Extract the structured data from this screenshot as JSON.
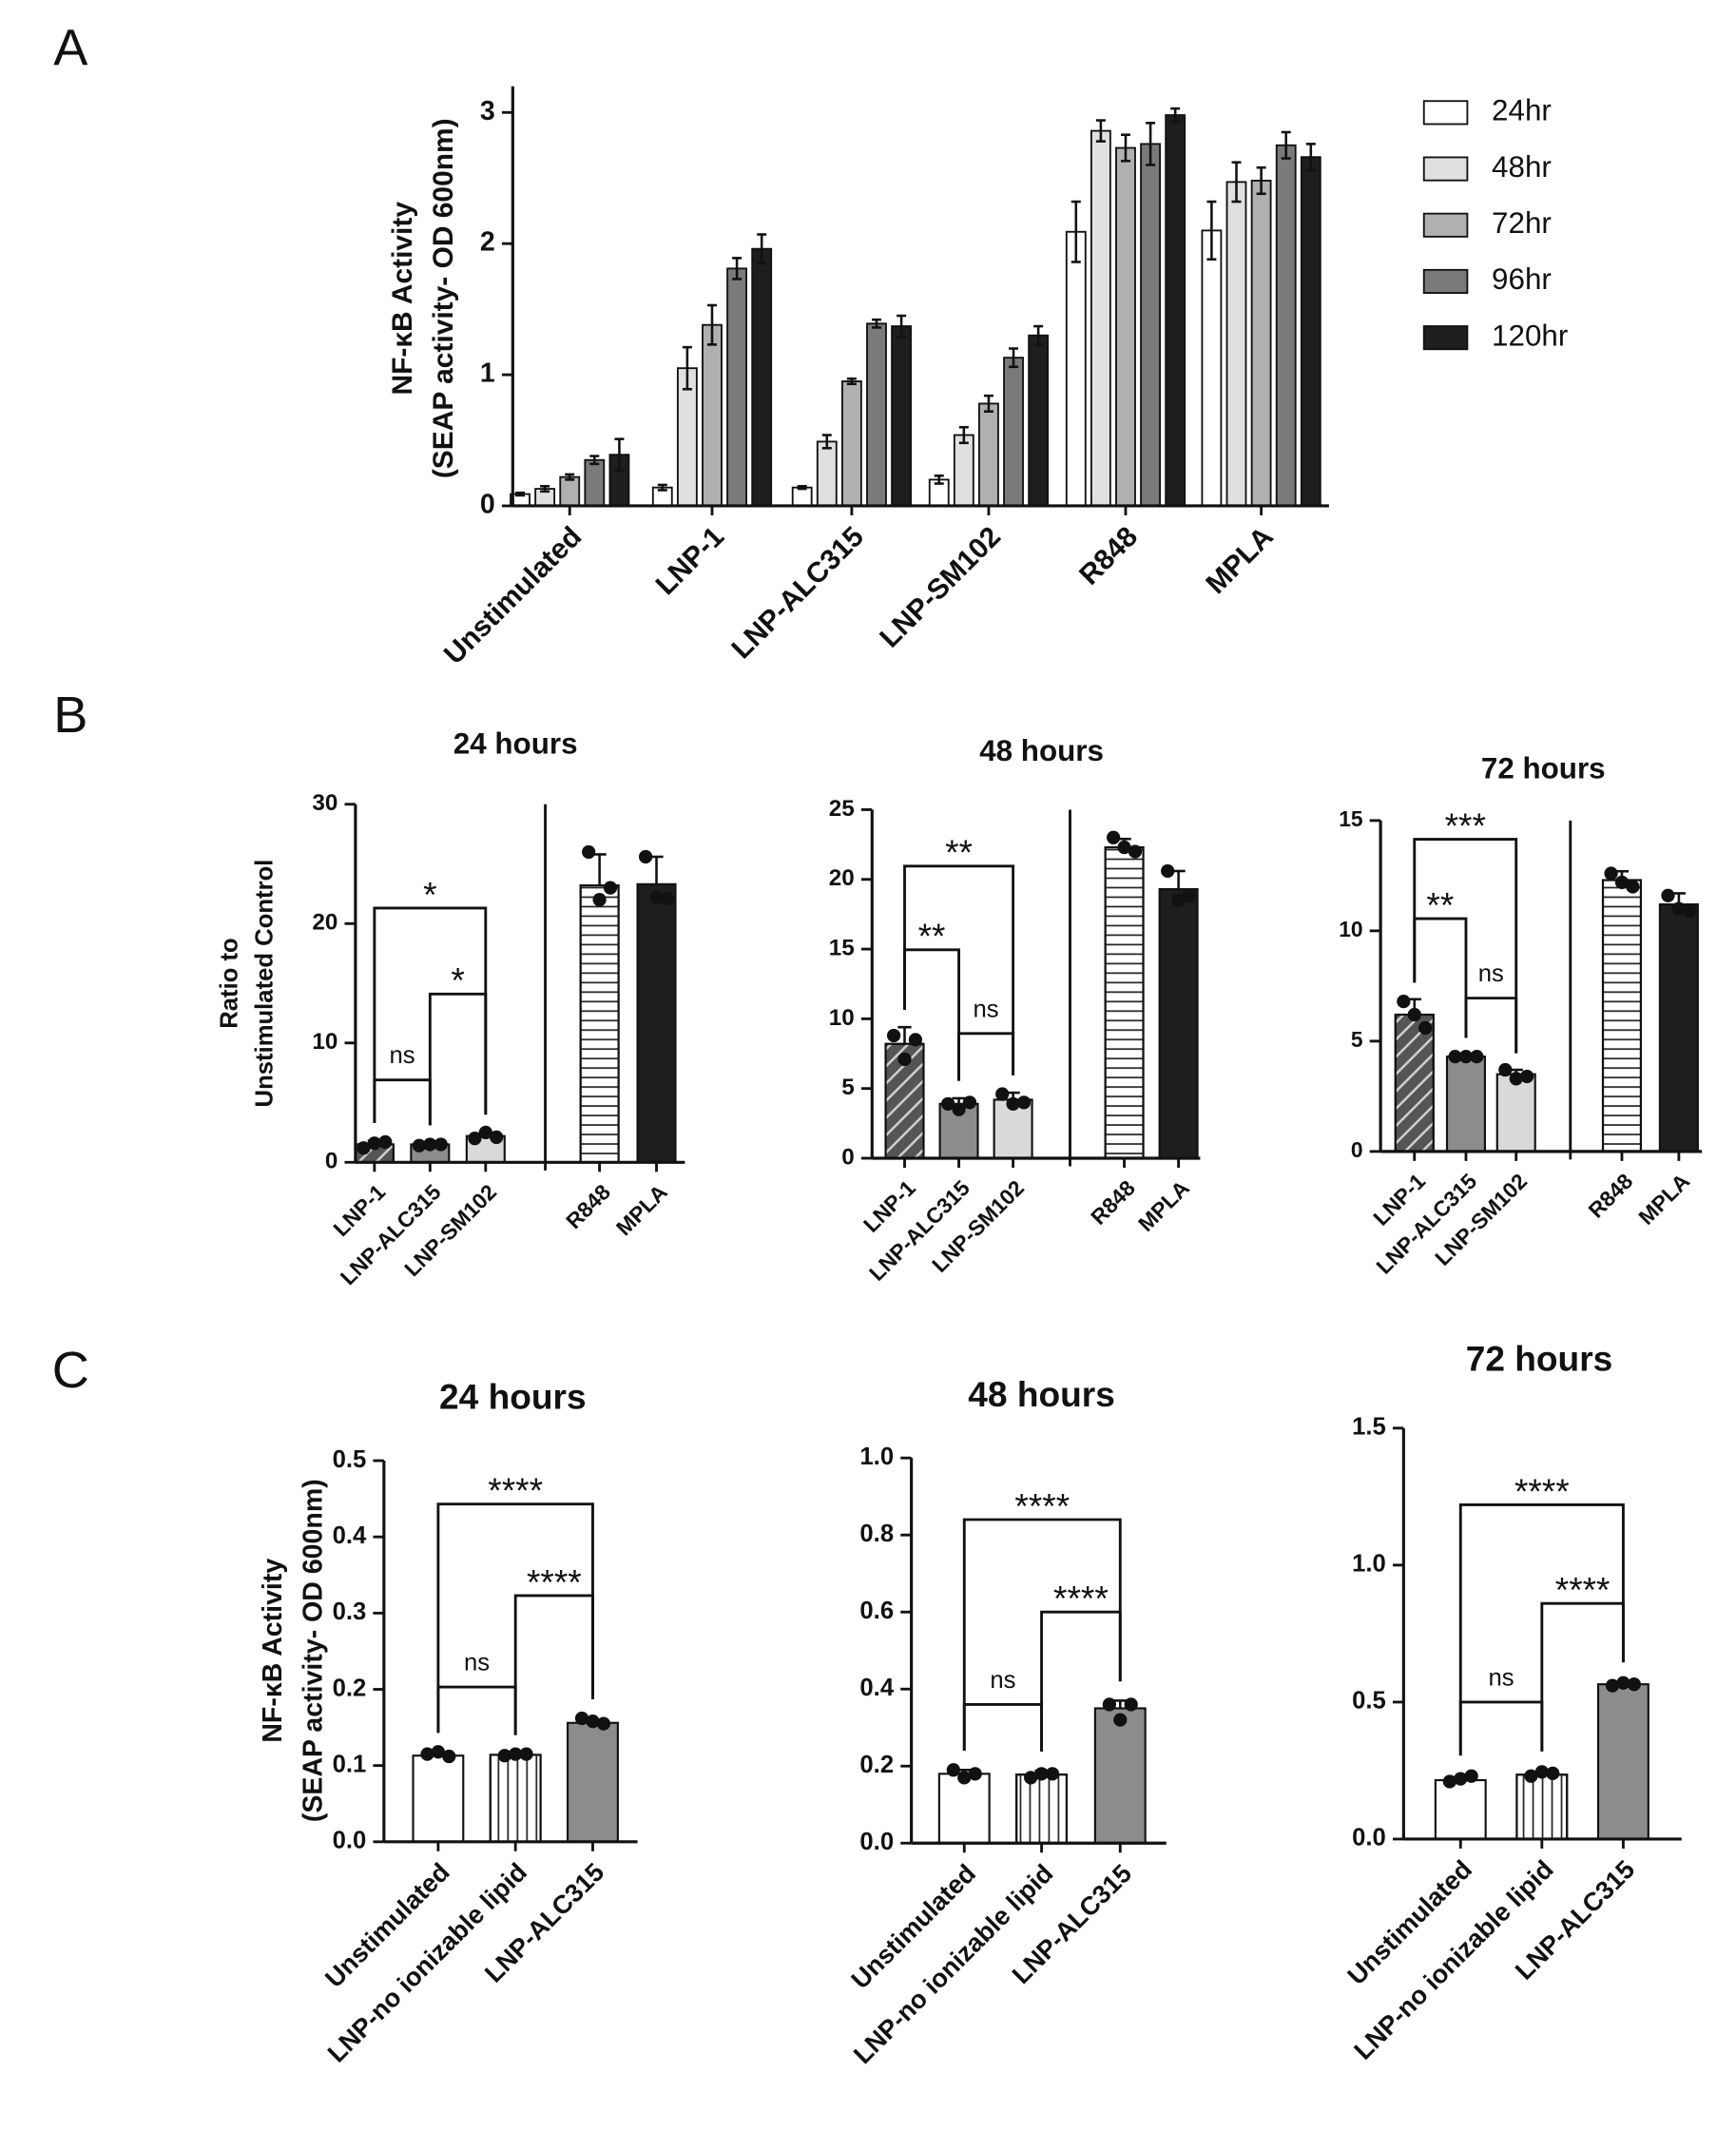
{
  "chart_data": [
    {
      "type": "grouped_bar",
      "panel_label": "A",
      "ylabel": [
        "NF-κB Activity",
        "(SEAP activity- OD 600nm)"
      ],
      "categories": [
        "Unstimulated",
        "LNP-1",
        "LNP-ALC315",
        "LNP-SM102",
        "R848",
        "MPLA"
      ],
      "series": [
        {
          "name": "24hr",
          "color": "#ffffff",
          "values": [
            0.09,
            0.14,
            0.14,
            0.2,
            2.09,
            2.1
          ],
          "errors": [
            0.01,
            0.02,
            0.01,
            0.03,
            0.23,
            0.22
          ]
        },
        {
          "name": "48hr",
          "color": "#e0e0e0",
          "values": [
            0.13,
            1.05,
            0.49,
            0.54,
            2.86,
            2.47
          ],
          "errors": [
            0.02,
            0.16,
            0.05,
            0.06,
            0.08,
            0.15
          ]
        },
        {
          "name": "72hr",
          "color": "#b0b0b0",
          "values": [
            0.22,
            1.38,
            0.95,
            0.78,
            2.73,
            2.48
          ],
          "errors": [
            0.02,
            0.15,
            0.02,
            0.06,
            0.1,
            0.1
          ]
        },
        {
          "name": "96hr",
          "color": "#7a7a7a",
          "values": [
            0.35,
            1.81,
            1.39,
            1.13,
            2.76,
            2.75
          ],
          "errors": [
            0.03,
            0.08,
            0.03,
            0.07,
            0.16,
            0.1
          ]
        },
        {
          "name": "120hr",
          "color": "#1e1e1e",
          "values": [
            0.39,
            1.96,
            1.37,
            1.3,
            2.98,
            2.66
          ],
          "errors": [
            0.12,
            0.11,
            0.08,
            0.07,
            0.05,
            0.1
          ]
        }
      ],
      "ylim": [
        0,
        3.2
      ],
      "yticks": [
        0,
        1,
        2,
        3
      ]
    },
    {
      "type": "bar_dots",
      "panel_label": "B",
      "title": "24 hours",
      "ylabel": [
        "Ratio to",
        "Unstimulated  Control"
      ],
      "categories": [
        "LNP-1",
        "LNP-ALC315",
        "LNP-SM102",
        "R848",
        "MPLA"
      ],
      "colors": [
        "#555555",
        "#8c8c8c",
        "#d9d9d9",
        "#ffffff",
        "#1e1e1e"
      ],
      "hatches": [
        "diagonal",
        "none",
        "none",
        "horizontal",
        "none"
      ],
      "values": [
        1.5,
        1.5,
        2.2,
        23.2,
        23.3
      ],
      "errors": [
        0.3,
        0.1,
        0.3,
        2.6,
        2.3
      ],
      "points": [
        [
          1.2,
          1.6,
          1.7
        ],
        [
          1.4,
          1.5,
          1.5
        ],
        [
          2.0,
          2.5,
          2.1
        ],
        [
          26.0,
          22.0,
          23.0
        ],
        [
          25.6,
          22.2,
          22.1
        ]
      ],
      "ylim": [
        0,
        30
      ],
      "yticks": [
        0,
        10,
        20,
        30
      ],
      "divider_after": "LNP-SM102",
      "comparisons": [
        {
          "between": [
            "LNP-1",
            "LNP-ALC315"
          ],
          "label": "ns"
        },
        {
          "between": [
            "LNP-ALC315",
            "LNP-SM102"
          ],
          "label": "*"
        },
        {
          "between": [
            "LNP-1",
            "LNP-SM102"
          ],
          "label": "*"
        }
      ]
    },
    {
      "type": "bar_dots",
      "title": "48 hours",
      "categories": [
        "LNP-1",
        "LNP-ALC315",
        "LNP-SM102",
        "R848",
        "MPLA"
      ],
      "colors": [
        "#555555",
        "#8c8c8c",
        "#d9d9d9",
        "#ffffff",
        "#1e1e1e"
      ],
      "hatches": [
        "diagonal",
        "none",
        "none",
        "horizontal",
        "none"
      ],
      "values": [
        8.2,
        3.9,
        4.2,
        22.3,
        19.3
      ],
      "errors": [
        1.2,
        0.4,
        0.5,
        0.6,
        1.3
      ],
      "points": [
        [
          8.8,
          7.1,
          8.5
        ],
        [
          3.9,
          3.5,
          4.0
        ],
        [
          4.6,
          3.9,
          4.0
        ],
        [
          23.0,
          22.3,
          22.0
        ],
        [
          20.6,
          18.5,
          18.8
        ]
      ],
      "ylim": [
        0,
        25
      ],
      "yticks": [
        0,
        5,
        10,
        15,
        20,
        25
      ],
      "divider_after": "LNP-SM102",
      "comparisons": [
        {
          "between": [
            "LNP-ALC315",
            "LNP-SM102"
          ],
          "label": "ns"
        },
        {
          "between": [
            "LNP-1",
            "LNP-ALC315"
          ],
          "label": "**"
        },
        {
          "between": [
            "LNP-1",
            "LNP-SM102"
          ],
          "label": "**"
        }
      ]
    },
    {
      "type": "bar_dots",
      "title": "72 hours",
      "categories": [
        "LNP-1",
        "LNP-ALC315",
        "LNP-SM102",
        "R848",
        "MPLA"
      ],
      "colors": [
        "#555555",
        "#8c8c8c",
        "#d9d9d9",
        "#ffffff",
        "#1e1e1e"
      ],
      "hatches": [
        "diagonal",
        "none",
        "none",
        "horizontal",
        "none"
      ],
      "values": [
        6.2,
        4.3,
        3.5,
        12.3,
        11.2
      ],
      "errors": [
        0.7,
        0.1,
        0.2,
        0.4,
        0.5
      ],
      "points": [
        [
          6.8,
          6.2,
          5.6
        ],
        [
          4.3,
          4.3,
          4.3
        ],
        [
          3.7,
          3.3,
          3.4
        ],
        [
          12.6,
          12.2,
          12.0
        ],
        [
          11.6,
          11.0,
          10.9
        ]
      ],
      "ylim": [
        0,
        15
      ],
      "yticks": [
        0,
        5,
        10,
        15
      ],
      "divider_after": "LNP-SM102",
      "comparisons": [
        {
          "between": [
            "LNP-ALC315",
            "LNP-SM102"
          ],
          "label": "ns"
        },
        {
          "between": [
            "LNP-1",
            "LNP-ALC315"
          ],
          "label": "**"
        },
        {
          "between": [
            "LNP-1",
            "LNP-SM102"
          ],
          "label": "***"
        }
      ]
    },
    {
      "type": "bar_dots",
      "panel_label": "C",
      "title": "24 hours",
      "ylabel": [
        "NF-κB Activity",
        "(SEAP activity- OD 600nm)"
      ],
      "categories": [
        "Unstimulated",
        "LNP-no ionizable lipid",
        "LNP-ALC315"
      ],
      "colors": [
        "#ffffff",
        "#ffffff",
        "#8c8c8c"
      ],
      "hatches": [
        "none",
        "vertical",
        "none"
      ],
      "values": [
        0.113,
        0.114,
        0.156
      ],
      "errors": [
        0.003,
        0.001,
        0.004
      ],
      "points": [
        [
          0.115,
          0.118,
          0.112
        ],
        [
          0.113,
          0.115,
          0.115
        ],
        [
          0.162,
          0.158,
          0.155
        ]
      ],
      "ylim": [
        0,
        0.5
      ],
      "yticks": [
        {
          "value": 0,
          "label": "0.0"
        },
        0.1,
        0.2,
        0.3,
        0.4,
        0.5
      ],
      "comparisons": [
        {
          "between": [
            "Unstimulated",
            "LNP-no ionizable lipid"
          ],
          "label": "ns"
        },
        {
          "between": [
            "LNP-no ionizable lipid",
            "LNP-ALC315"
          ],
          "label": "****"
        },
        {
          "between": [
            "Unstimulated",
            "LNP-ALC315"
          ],
          "label": "****"
        }
      ]
    },
    {
      "type": "bar_dots",
      "title": "48 hours",
      "categories": [
        "Unstimulated",
        "LNP-no ionizable lipid",
        "LNP-ALC315"
      ],
      "colors": [
        "#ffffff",
        "#ffffff",
        "#8c8c8c"
      ],
      "hatches": [
        "none",
        "vertical",
        "none"
      ],
      "values": [
        0.18,
        0.178,
        0.35
      ],
      "errors": [
        0.01,
        0.01,
        0.02
      ],
      "points": [
        [
          0.19,
          0.17,
          0.18
        ],
        [
          0.17,
          0.18,
          0.18
        ],
        [
          0.36,
          0.32,
          0.36
        ]
      ],
      "ylim": [
        0,
        1.0
      ],
      "yticks": [
        {
          "value": 0,
          "label": "0.0"
        },
        0.2,
        0.4,
        0.6,
        0.8,
        {
          "value": 1,
          "label": "1.0"
        }
      ],
      "comparisons": [
        {
          "between": [
            "Unstimulated",
            "LNP-no ionizable lipid"
          ],
          "label": "ns"
        },
        {
          "between": [
            "LNP-no ionizable lipid",
            "LNP-ALC315"
          ],
          "label": "****"
        },
        {
          "between": [
            "Unstimulated",
            "LNP-ALC315"
          ],
          "label": "****"
        }
      ]
    },
    {
      "type": "bar_dots",
      "title": "72 hours",
      "categories": [
        "Unstimulated",
        "LNP-no ionizable lipid",
        "LNP-ALC315"
      ],
      "colors": [
        "#ffffff",
        "#ffffff",
        "#8c8c8c"
      ],
      "hatches": [
        "none",
        "vertical",
        "none"
      ],
      "values": [
        0.215,
        0.235,
        0.565
      ],
      "errors": [
        0.01,
        0.01,
        0.005
      ],
      "points": [
        [
          0.21,
          0.22,
          0.23
        ],
        [
          0.23,
          0.245,
          0.24
        ],
        [
          0.56,
          0.57,
          0.565
        ]
      ],
      "ylim": [
        0,
        1.5
      ],
      "yticks": [
        {
          "value": 0,
          "label": "0.0"
        },
        0.5,
        {
          "value": 1,
          "label": "1.0"
        },
        1.5
      ],
      "comparisons": [
        {
          "between": [
            "Unstimulated",
            "LNP-no ionizable lipid"
          ],
          "label": "ns"
        },
        {
          "between": [
            "LNP-no ionizable lipid",
            "LNP-ALC315"
          ],
          "label": "****"
        },
        {
          "between": [
            "Unstimulated",
            "LNP-ALC315"
          ],
          "label": "****"
        }
      ]
    }
  ]
}
